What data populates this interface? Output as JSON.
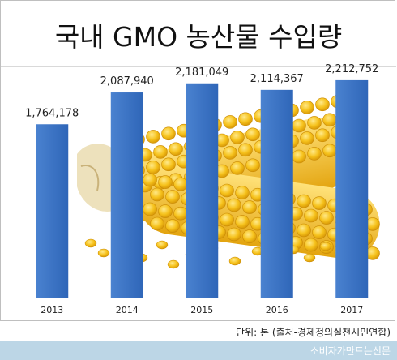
{
  "chart_data": {
    "type": "bar",
    "title": "국내 GMO 농산물 수입량",
    "categories": [
      "2013",
      "2014",
      "2015",
      "2016",
      "2017"
    ],
    "values": [
      1764178,
      2087940,
      2181049,
      2114367,
      2212752
    ],
    "value_labels": [
      "1,764,178",
      "2,087,940",
      "2,181,049",
      "2,114,367",
      "2,212,752"
    ],
    "ylim": [
      0,
      2600000
    ],
    "bar_color": "#3a73c4",
    "grid": false,
    "background_image": "corn-cob-photo"
  },
  "footer": {
    "unit_source": "단위: 톤 (출처-경제정의실천시민연합)",
    "brand": "소비자가만드는신문"
  }
}
